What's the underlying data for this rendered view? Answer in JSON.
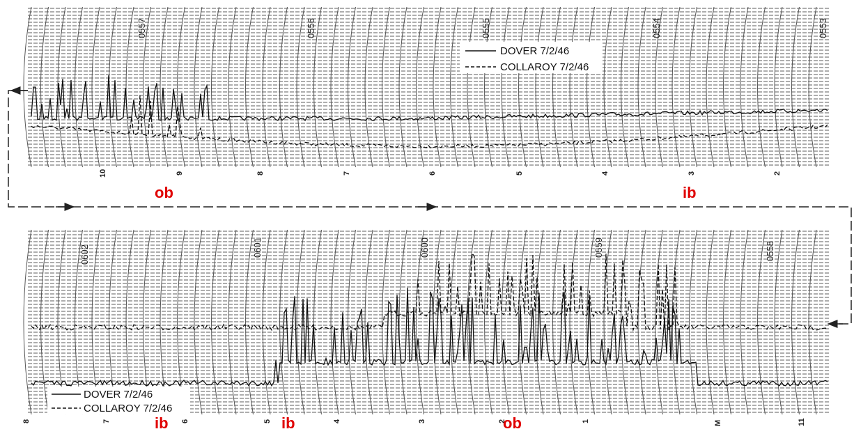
{
  "panels": [
    {
      "time_labels": [
        "0557",
        "0556",
        "0555",
        "0554",
        "0553"
      ],
      "scale_labels": [
        "10",
        "9",
        "8",
        "7",
        "6",
        "5",
        "4",
        "3",
        "2"
      ],
      "legend": [
        "DOVER 7/2/46",
        "COLLAROY 7/2/46"
      ],
      "annotations": [
        "ob",
        "ib"
      ]
    },
    {
      "time_labels": [
        "0602",
        "0601",
        "0600",
        "0559",
        "0558"
      ],
      "scale_labels": [
        "8",
        "7",
        "6",
        "5",
        "4",
        "3",
        "2",
        "1",
        "M",
        "11"
      ],
      "legend": [
        "DOVER 7/2/46",
        "COLLAROY 7/2/46"
      ],
      "annotations": [
        "ib",
        "ib",
        "ob"
      ]
    }
  ]
}
